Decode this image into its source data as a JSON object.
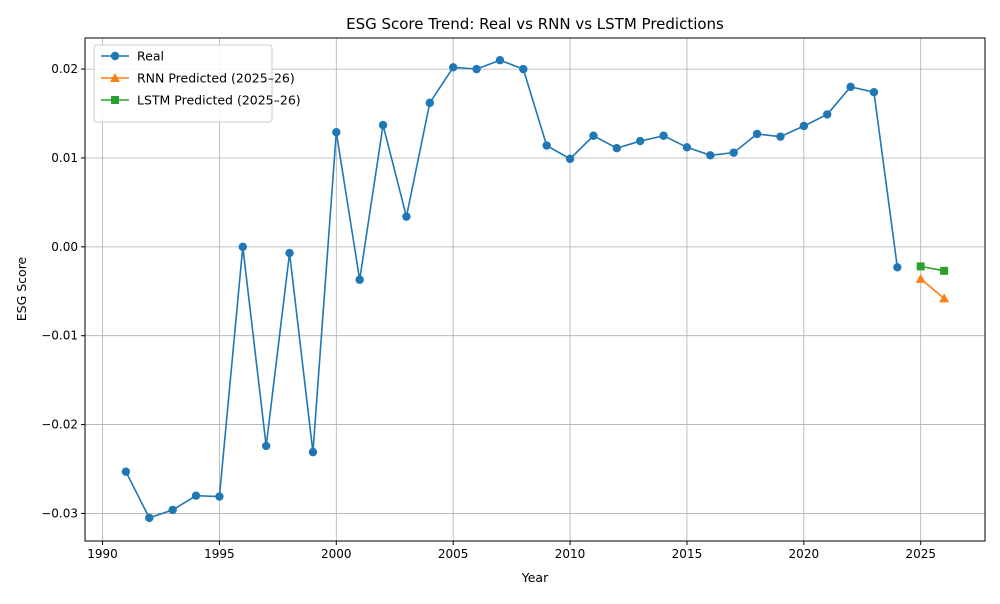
{
  "chart_data": {
    "type": "line",
    "title": "ESG Score Trend: Real vs RNN vs LSTM Predictions",
    "xlabel": "Year",
    "ylabel": "ESG Score",
    "xlim": [
      1989.25,
      2027.75
    ],
    "ylim": [
      -0.0331,
      0.0235
    ],
    "xticks": [
      1990,
      1995,
      2000,
      2005,
      2010,
      2015,
      2020,
      2025
    ],
    "xtick_labels": [
      "1990",
      "1995",
      "2000",
      "2005",
      "2010",
      "2015",
      "2020",
      "2025"
    ],
    "yticks": [
      -0.03,
      -0.02,
      -0.01,
      0.0,
      0.01,
      0.02
    ],
    "ytick_labels": [
      "−0.03",
      "−0.02",
      "−0.01",
      "0.00",
      "0.01",
      "0.02"
    ],
    "grid": true,
    "legend_position": "top-left",
    "series": [
      {
        "name": "Real",
        "color": "#1f77b4",
        "marker": "circle",
        "x": [
          1991,
          1992,
          1993,
          1994,
          1995,
          1996,
          1997,
          1998,
          1999,
          2000,
          2001,
          2002,
          2003,
          2004,
          2005,
          2006,
          2007,
          2008,
          2009,
          2010,
          2011,
          2012,
          2013,
          2014,
          2015,
          2016,
          2017,
          2018,
          2019,
          2020,
          2021,
          2022,
          2023,
          2024
        ],
        "y": [
          -0.0253,
          -0.0305,
          -0.0296,
          -0.028,
          -0.0281,
          0.0,
          -0.0224,
          -0.0007,
          -0.0231,
          0.0129,
          -0.0037,
          0.0137,
          0.0034,
          0.0162,
          0.0202,
          0.02,
          0.021,
          0.02,
          0.0114,
          0.0099,
          0.0125,
          0.0111,
          0.0119,
          0.0125,
          0.0112,
          0.0103,
          0.0106,
          0.0127,
          0.0124,
          0.0136,
          0.0149,
          0.018,
          0.0174,
          -0.0023
        ]
      },
      {
        "name": "RNN Predicted (2025–26)",
        "color": "#ff7f0e",
        "marker": "triangle",
        "x": [
          2025,
          2026
        ],
        "y": [
          -0.0036,
          -0.0058
        ]
      },
      {
        "name": "LSTM Predicted (2025–26)",
        "color": "#2ca02c",
        "marker": "square",
        "x": [
          2025,
          2026
        ],
        "y": [
          -0.0022,
          -0.0027
        ]
      }
    ]
  }
}
